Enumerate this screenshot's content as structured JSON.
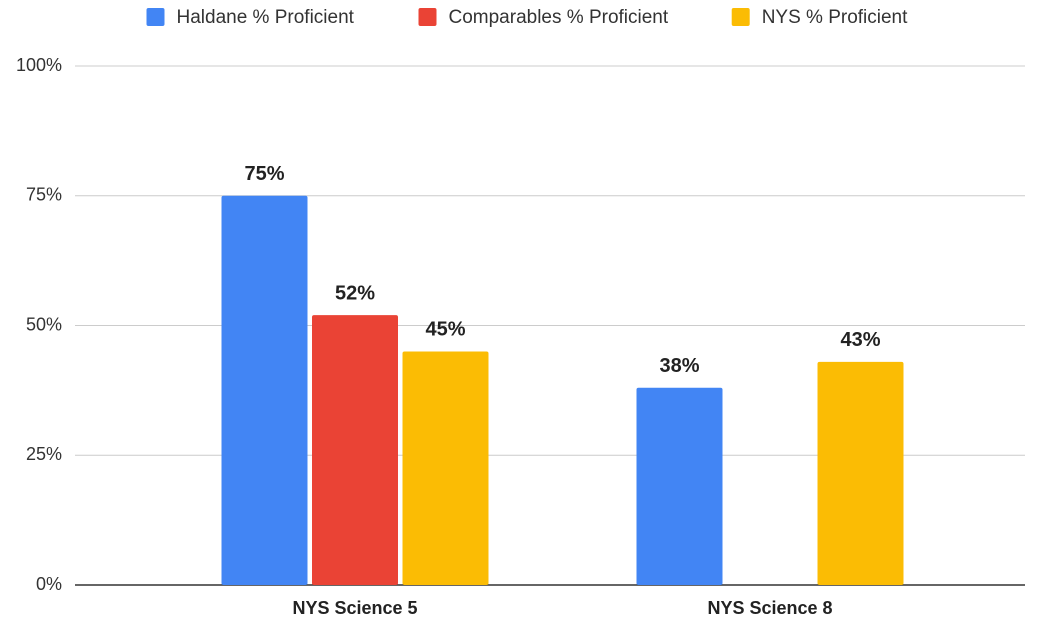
{
  "chart_data": {
    "type": "bar",
    "categories": [
      "NYS Science 5",
      "NYS Science 8"
    ],
    "series": [
      {
        "name": "Haldane % Proficient",
        "color": "#4285f4",
        "values": [
          75,
          38
        ],
        "value_labels": [
          "75%",
          "38%"
        ]
      },
      {
        "name": "Comparables % Proficient",
        "color": "#ea4335",
        "values": [
          52,
          null
        ],
        "value_labels": [
          "52%",
          null
        ]
      },
      {
        "name": "NYS % Proficient",
        "color": "#fbbc04",
        "values": [
          45,
          43
        ],
        "value_labels": [
          "45%",
          "43%"
        ]
      }
    ],
    "ylim": [
      0,
      100
    ],
    "yticks": [
      {
        "value": 0,
        "label": "0%"
      },
      {
        "value": 25,
        "label": "25%"
      },
      {
        "value": 50,
        "label": "50%"
      },
      {
        "value": 75,
        "label": "75%"
      },
      {
        "value": 100,
        "label": "100%"
      }
    ],
    "grid": true,
    "legend": "top"
  }
}
